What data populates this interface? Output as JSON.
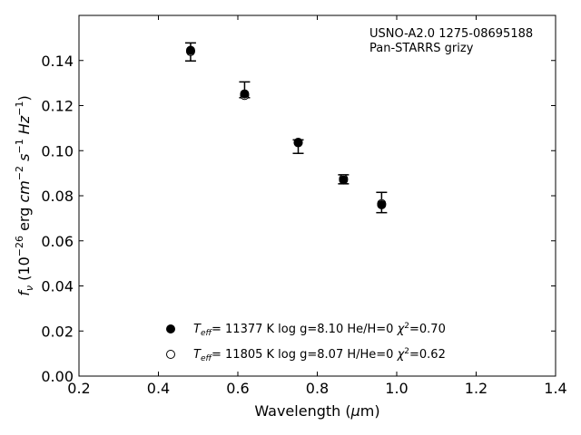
{
  "chart_data": {
    "type": "scatter",
    "title": "",
    "xlabel": "Wavelength (μm)",
    "ylabel": "f_ν (10^-26 erg cm^-2 s^-1 Hz^-1)",
    "xlim": [
      0.2,
      1.4
    ],
    "ylim": [
      0.0,
      0.16
    ],
    "xticks": [
      0.2,
      0.4,
      0.6,
      0.8,
      1.0,
      1.2,
      1.4
    ],
    "xtick_labels": [
      "0.2",
      "0.4",
      "0.6",
      "0.8",
      "1.0",
      "1.2",
      "1.4"
    ],
    "yticks": [
      0.0,
      0.02,
      0.04,
      0.06,
      0.08,
      0.1,
      0.12,
      0.14
    ],
    "ytick_labels": [
      "0.00",
      "0.02",
      "0.04",
      "0.06",
      "0.08",
      "0.10",
      "0.12",
      "0.14"
    ],
    "grid": false,
    "annotation": [
      "USNO-A2.0 1275-08695188",
      "Pan-STARRS grizy"
    ],
    "observed": {
      "x": [
        0.481,
        0.617,
        0.752,
        0.866,
        0.962
      ],
      "y": [
        0.1438,
        0.1265,
        0.1018,
        0.0873,
        0.0765
      ],
      "yerr_low": [
        0.004,
        0.003,
        0.003,
        0.002,
        0.004
      ],
      "yerr_high": [
        0.004,
        0.004,
        0.003,
        0.002,
        0.005
      ]
    },
    "series": [
      {
        "name": "T_eff= 11377 K  log g=8.10  He/H=0  χ²=0.70",
        "marker": "filled",
        "x": [
          0.481,
          0.617,
          0.752,
          0.866,
          0.962
        ],
        "y": [
          0.1445,
          0.1252,
          0.1037,
          0.087,
          0.076
        ]
      },
      {
        "name": "T_eff= 11805 K  log g=8.07  H/He=0  χ²=0.62",
        "marker": "open",
        "x": [
          0.481,
          0.617,
          0.752,
          0.866,
          0.962
        ],
        "y": [
          0.144,
          0.1245,
          0.1035,
          0.0875,
          0.0765
        ]
      }
    ],
    "legend_position": "lower-center"
  }
}
